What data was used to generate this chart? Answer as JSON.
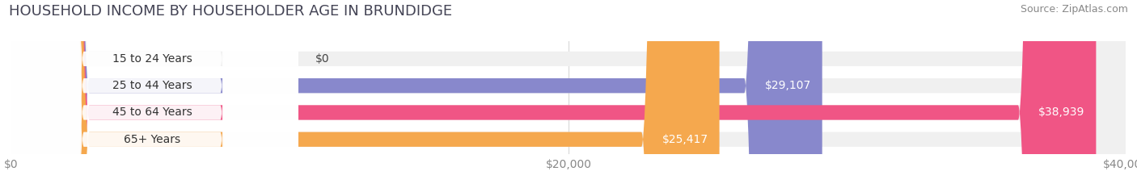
{
  "title": "HOUSEHOLD INCOME BY HOUSEHOLDER AGE IN BRUNDIDGE",
  "source": "Source: ZipAtlas.com",
  "categories": [
    "15 to 24 Years",
    "25 to 44 Years",
    "45 to 64 Years",
    "65+ Years"
  ],
  "values": [
    0,
    29107,
    38939,
    25417
  ],
  "labels": [
    "$0",
    "$29,107",
    "$38,939",
    "$25,417"
  ],
  "bar_colors": [
    "#5ecfcf",
    "#8888cc",
    "#f05585",
    "#f5a84e"
  ],
  "bar_colors_light": [
    "#e8f8f8",
    "#e8e8f5",
    "#fce8ee",
    "#fef0dc"
  ],
  "xlim": [
    0,
    40000
  ],
  "xticks": [
    0,
    20000,
    40000
  ],
  "xticklabels": [
    "$0",
    "$20,000",
    "$40,000"
  ],
  "background_color": "#ffffff",
  "bar_bg_color": "#f0f0f0",
  "title_fontsize": 13,
  "source_fontsize": 9,
  "label_fontsize": 10,
  "tick_fontsize": 10,
  "cat_label_fontsize": 10
}
